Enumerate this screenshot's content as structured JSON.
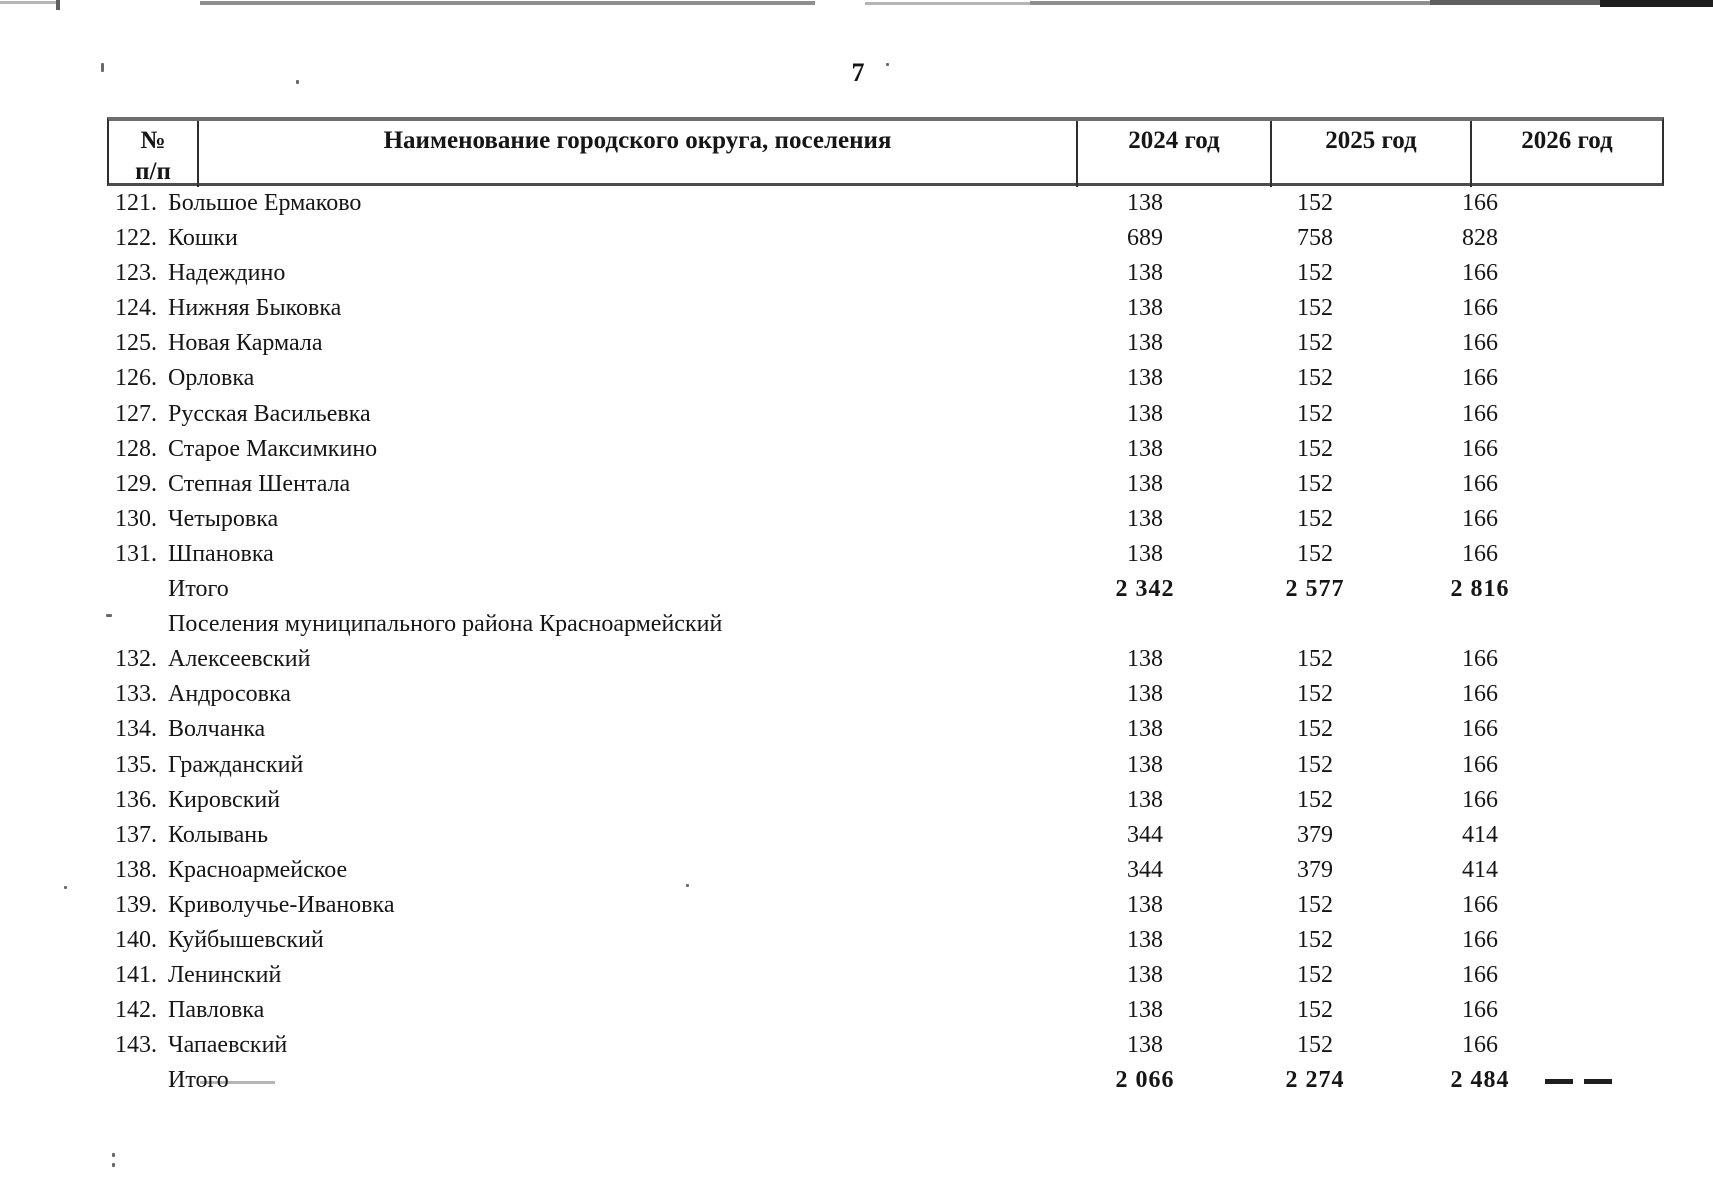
{
  "page": {
    "number": "7"
  },
  "colors": {
    "text": "#161616",
    "table_border": "#2e2e2e"
  },
  "table": {
    "header": {
      "num_line1": "№",
      "num_line2": "п/п",
      "name": "Наименование городского округа, поселения",
      "year_2024": "2024 год",
      "year_2025": "2025 год",
      "year_2026": "2026 год"
    },
    "rows": [
      {
        "type": "item",
        "num": "121.",
        "name": "Большое Ермаково",
        "v2024": "138",
        "v2025": "152",
        "v2026": "166"
      },
      {
        "type": "item",
        "num": "122.",
        "name": "Кошки",
        "v2024": "689",
        "v2025": "758",
        "v2026": "828"
      },
      {
        "type": "item",
        "num": "123.",
        "name": "Надеждино",
        "v2024": "138",
        "v2025": "152",
        "v2026": "166"
      },
      {
        "type": "item",
        "num": "124.",
        "name": "Нижняя Быковка",
        "v2024": "138",
        "v2025": "152",
        "v2026": "166"
      },
      {
        "type": "item",
        "num": "125.",
        "name": "Новая Кармала",
        "v2024": "138",
        "v2025": "152",
        "v2026": "166"
      },
      {
        "type": "item",
        "num": "126.",
        "name": "Орловка",
        "v2024": "138",
        "v2025": "152",
        "v2026": "166"
      },
      {
        "type": "item",
        "num": "127.",
        "name": "Русская Васильевка",
        "v2024": "138",
        "v2025": "152",
        "v2026": "166"
      },
      {
        "type": "item",
        "num": "128.",
        "name": "Старое Максимкино",
        "v2024": "138",
        "v2025": "152",
        "v2026": "166"
      },
      {
        "type": "item",
        "num": "129.",
        "name": "Степная Шентала",
        "v2024": "138",
        "v2025": "152",
        "v2026": "166"
      },
      {
        "type": "item",
        "num": "130.",
        "name": "Четыровка",
        "v2024": "138",
        "v2025": "152",
        "v2026": "166"
      },
      {
        "type": "item",
        "num": "131.",
        "name": "Шпановка",
        "v2024": "138",
        "v2025": "152",
        "v2026": "166"
      },
      {
        "type": "total",
        "num": "",
        "name": "Итого",
        "v2024": "2 342",
        "v2025": "2 577",
        "v2026": "2 816"
      },
      {
        "type": "section",
        "num": "",
        "name": "Поселения муниципального района Красноармейский",
        "v2024": "",
        "v2025": "",
        "v2026": ""
      },
      {
        "type": "item",
        "num": "132.",
        "name": "Алексеевский",
        "v2024": "138",
        "v2025": "152",
        "v2026": "166"
      },
      {
        "type": "item",
        "num": "133.",
        "name": "Андросовка",
        "v2024": "138",
        "v2025": "152",
        "v2026": "166"
      },
      {
        "type": "item",
        "num": "134.",
        "name": "Волчанка",
        "v2024": "138",
        "v2025": "152",
        "v2026": "166"
      },
      {
        "type": "item",
        "num": "135.",
        "name": "Гражданский",
        "v2024": "138",
        "v2025": "152",
        "v2026": "166"
      },
      {
        "type": "item",
        "num": "136.",
        "name": "Кировский",
        "v2024": "138",
        "v2025": "152",
        "v2026": "166"
      },
      {
        "type": "item",
        "num": "137.",
        "name": "Колывань",
        "v2024": "344",
        "v2025": "379",
        "v2026": "414"
      },
      {
        "type": "item",
        "num": "138.",
        "name": "Красноармейское",
        "v2024": "344",
        "v2025": "379",
        "v2026": "414"
      },
      {
        "type": "item",
        "num": "139.",
        "name": "Криволучье-Ивановка",
        "v2024": "138",
        "v2025": "152",
        "v2026": "166"
      },
      {
        "type": "item",
        "num": "140.",
        "name": "Куйбышевский",
        "v2024": "138",
        "v2025": "152",
        "v2026": "166"
      },
      {
        "type": "item",
        "num": "141.",
        "name": "Ленинский",
        "v2024": "138",
        "v2025": "152",
        "v2026": "166"
      },
      {
        "type": "item",
        "num": "142.",
        "name": "Павловка",
        "v2024": "138",
        "v2025": "152",
        "v2026": "166"
      },
      {
        "type": "item",
        "num": "143.",
        "name": "Чапаевский",
        "v2024": "138",
        "v2025": "152",
        "v2026": "166"
      },
      {
        "type": "total",
        "num": "",
        "name": "Итого",
        "v2024": "2 066",
        "v2025": "2 274",
        "v2026": "2 484"
      }
    ]
  }
}
